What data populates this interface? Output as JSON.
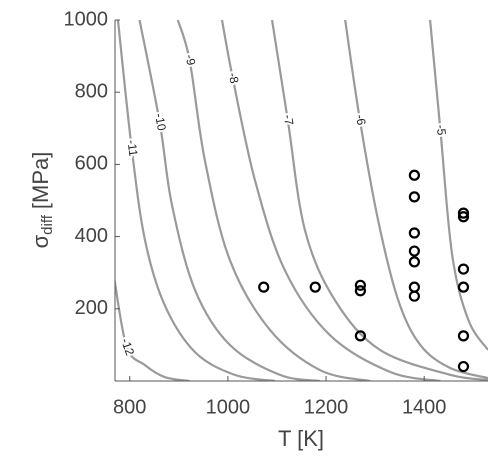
{
  "chart_data": {
    "type": "contour",
    "xlabel": "T [K]",
    "ylabel": {
      "symbol": "σ",
      "subscript": "diff",
      "unit": "[MPa]"
    },
    "xlim": [
      770,
      1530
    ],
    "ylim": [
      0,
      1000
    ],
    "xticks": [
      800,
      1000,
      1200,
      1400
    ],
    "yticks": [
      200,
      400,
      600,
      800,
      1000
    ],
    "contour_color": "#9a9a9a",
    "contours": [
      {
        "level": -12,
        "x": [
          769,
          794,
          831,
          871,
          922
        ],
        "y": [
          280,
          94,
          44,
          11,
          0
        ]
      },
      {
        "level": -11,
        "x": [
          776,
          804,
          831,
          871,
          933,
          1014,
          1096
        ],
        "y": [
          1000,
          645,
          391,
          211,
          80,
          17,
          0
        ]
      },
      {
        "level": -10,
        "x": [
          820,
          861,
          886,
          933,
          1004,
          1106,
          1188
        ],
        "y": [
          1000,
          717,
          488,
          252,
          100,
          17,
          0
        ]
      },
      {
        "level": -9,
        "x": [
          898,
          922,
          953,
          1004,
          1086,
          1188,
          1290
        ],
        "y": [
          1000,
          889,
          612,
          335,
          141,
          30,
          0
        ]
      },
      {
        "level": -8,
        "x": [
          988,
          1010,
          1055,
          1116,
          1208,
          1331,
          1433
        ],
        "y": [
          1000,
          839,
          557,
          307,
          127,
          25,
          0
        ]
      },
      {
        "level": -7,
        "x": [
          1090,
          1122,
          1157,
          1218,
          1310,
          1453,
          1530
        ],
        "y": [
          1000,
          723,
          418,
          224,
          86,
          17,
          3
        ]
      },
      {
        "level": -6,
        "x": [
          1239,
          1269,
          1306,
          1347,
          1392,
          1453,
          1530
        ],
        "y": [
          1000,
          723,
          446,
          224,
          100,
          36,
          8
        ]
      },
      {
        "level": -5,
        "x": [
          1412,
          1433,
          1457,
          1490,
          1530
        ],
        "y": [
          1000,
          695,
          349,
          169,
          86
        ]
      }
    ],
    "points": {
      "color": "#000000",
      "x": [
        1073,
        1178,
        1270,
        1270,
        1270,
        1380,
        1380,
        1380,
        1380,
        1380,
        1380,
        1380,
        1480,
        1480,
        1480,
        1480,
        1480,
        1480
      ],
      "y": [
        260,
        260,
        265,
        250,
        125,
        570,
        510,
        410,
        360,
        330,
        260,
        235,
        465,
        455,
        310,
        260,
        125,
        40
      ]
    }
  }
}
